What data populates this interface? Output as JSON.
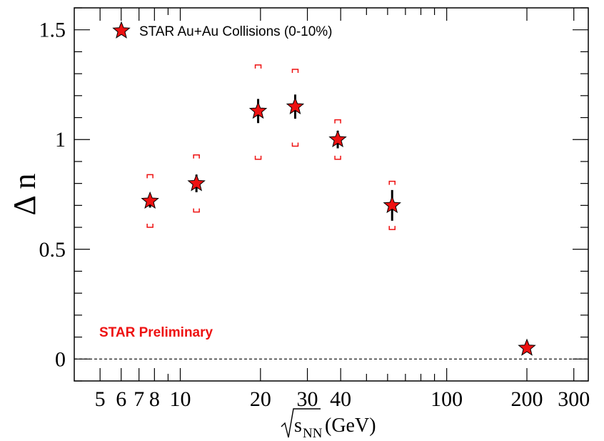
{
  "chart_data": {
    "type": "scatter",
    "xscale": "log",
    "xlim": [
      4,
      340
    ],
    "ylim": [
      -0.1,
      1.6
    ],
    "xticks": [
      {
        "value": 5,
        "label": "5"
      },
      {
        "value": 6,
        "label": "6"
      },
      {
        "value": 7,
        "label": "7"
      },
      {
        "value": 8,
        "label": "8"
      },
      {
        "value": 10,
        "label": "10"
      },
      {
        "value": 20,
        "label": "20"
      },
      {
        "value": 30,
        "label": "30"
      },
      {
        "value": 40,
        "label": "40"
      },
      {
        "value": 100,
        "label": "100"
      },
      {
        "value": 200,
        "label": "200"
      },
      {
        "value": 300,
        "label": "300"
      }
    ],
    "yticks": [
      {
        "value": 0,
        "label": "0"
      },
      {
        "value": 0.5,
        "label": "0.5"
      },
      {
        "value": 1,
        "label": "1"
      },
      {
        "value": 1.5,
        "label": "1.5"
      }
    ],
    "xlabel_prefix": "s",
    "xlabel_sub": "NN",
    "xlabel_suffix": "(GeV)",
    "ylabel": "Δ n",
    "legend": "STAR Au+Au Collisions (0-10%)",
    "annotation": "STAR Preliminary",
    "reference_line_y": 0,
    "marker_color": "#ee1111",
    "syst_color": "#ee1111",
    "series": [
      {
        "name": "STAR Au+Au Collisions (0-10%)",
        "points": [
          {
            "x": 7.7,
            "y": 0.72,
            "stat": 0.03,
            "syst_low": 0.6,
            "syst_high": 0.84
          },
          {
            "x": 11.5,
            "y": 0.8,
            "stat": 0.04,
            "syst_low": 0.67,
            "syst_high": 0.93
          },
          {
            "x": 19.6,
            "y": 1.13,
            "stat": 0.055,
            "syst_low": 0.91,
            "syst_high": 1.34
          },
          {
            "x": 27,
            "y": 1.15,
            "stat": 0.055,
            "syst_low": 0.97,
            "syst_high": 1.32
          },
          {
            "x": 39,
            "y": 1.0,
            "stat": 0.04,
            "syst_low": 0.91,
            "syst_high": 1.09
          },
          {
            "x": 62.4,
            "y": 0.7,
            "stat": 0.07,
            "syst_low": 0.59,
            "syst_high": 0.81
          },
          {
            "x": 200,
            "y": 0.05,
            "stat": 0.0,
            "syst_low": null,
            "syst_high": null
          }
        ]
      }
    ]
  }
}
